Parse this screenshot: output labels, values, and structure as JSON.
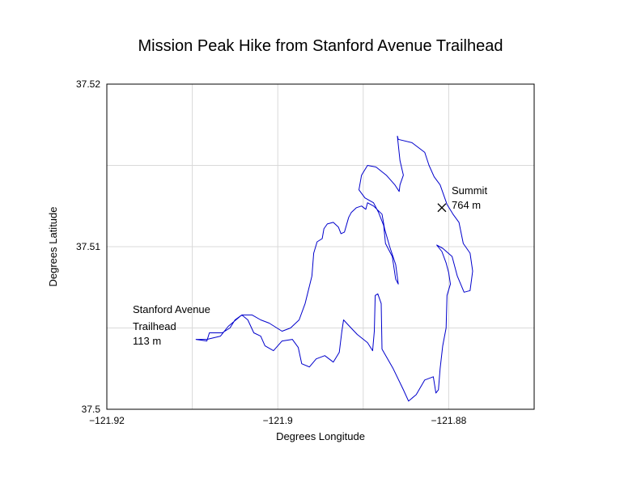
{
  "chart_data": {
    "type": "line",
    "title": "Mission Peak Hike from Stanford Avenue Trailhead",
    "xlabel": "Degrees Longitude",
    "ylabel": "Degrees Latitude",
    "xlim": [
      -121.92,
      -121.87
    ],
    "ylim": [
      37.5,
      37.52
    ],
    "x_ticks": [
      -121.92,
      -121.9,
      -121.88
    ],
    "x_tick_labels": [
      "−121.92",
      "−121.9",
      "−121.88"
    ],
    "y_ticks": [
      37.5,
      37.51,
      37.52
    ],
    "y_tick_labels": [
      "37.5",
      "37.51",
      "37.52"
    ],
    "x_grid": [
      -121.91,
      -121.9,
      -121.89,
      -121.88
    ],
    "y_grid": [
      37.505,
      37.51,
      37.515
    ],
    "grid": true,
    "line_color": "#0000cc",
    "series": [
      {
        "points": [
          [
            -121.9096,
            37.5043
          ],
          [
            -121.9083,
            37.5042
          ],
          [
            -121.908,
            37.5047
          ],
          [
            -121.9065,
            37.5047
          ],
          [
            -121.9056,
            37.505
          ],
          [
            -121.905,
            37.5055
          ],
          [
            -121.9042,
            37.5058
          ],
          [
            -121.9035,
            37.5055
          ],
          [
            -121.9028,
            37.5047
          ],
          [
            -121.902,
            37.5045
          ],
          [
            -121.9015,
            37.5039
          ],
          [
            -121.9005,
            37.5036
          ],
          [
            -121.8995,
            37.5042
          ],
          [
            -121.8983,
            37.5043
          ],
          [
            -121.8976,
            37.5038
          ],
          [
            -121.8972,
            37.5028
          ],
          [
            -121.8963,
            37.5026
          ],
          [
            -121.8955,
            37.5031
          ],
          [
            -121.8945,
            37.5033
          ],
          [
            -121.8935,
            37.5029
          ],
          [
            -121.8928,
            37.5035
          ],
          [
            -121.8925,
            37.5048
          ],
          [
            -121.8923,
            37.5055
          ],
          [
            -121.8916,
            37.5051
          ],
          [
            -121.8907,
            37.5046
          ],
          [
            -121.8895,
            37.5041
          ],
          [
            -121.8889,
            37.5036
          ],
          [
            -121.8887,
            37.5048
          ],
          [
            -121.8886,
            37.507
          ],
          [
            -121.8883,
            37.5071
          ],
          [
            -121.8879,
            37.5065
          ],
          [
            -121.8878,
            37.5037
          ],
          [
            -121.8865,
            37.5025
          ],
          [
            -121.8853,
            37.5012
          ],
          [
            -121.8847,
            37.5005
          ],
          [
            -121.8838,
            37.5009
          ],
          [
            -121.8828,
            37.5018
          ],
          [
            -121.8818,
            37.502
          ],
          [
            -121.8815,
            37.501
          ],
          [
            -121.8812,
            37.5012
          ],
          [
            -121.881,
            37.5025
          ],
          [
            -121.8807,
            37.5039
          ],
          [
            -121.8803,
            37.505
          ],
          [
            -121.8802,
            37.507
          ],
          [
            -121.8798,
            37.5077
          ],
          [
            -121.88,
            37.5084
          ],
          [
            -121.8803,
            37.509
          ],
          [
            -121.8808,
            37.5097
          ],
          [
            -121.8814,
            37.5101
          ],
          [
            -121.8807,
            37.5099
          ],
          [
            -121.8796,
            37.5094
          ],
          [
            -121.879,
            37.5082
          ],
          [
            -121.8782,
            37.5072
          ],
          [
            -121.8775,
            37.5073
          ],
          [
            -121.8772,
            37.5085
          ],
          [
            -121.8775,
            37.5096
          ],
          [
            -121.8783,
            37.5102
          ],
          [
            -121.8788,
            37.5115
          ],
          [
            -121.8795,
            37.512
          ],
          [
            -121.8802,
            37.5126
          ],
          [
            -121.881,
            37.5138
          ],
          [
            -121.8817,
            37.5143
          ],
          [
            -121.8823,
            37.515
          ],
          [
            -121.8828,
            37.5158
          ],
          [
            -121.8843,
            37.5164
          ],
          [
            -121.8859,
            37.5166
          ],
          [
            -121.886,
            37.5168
          ],
          [
            -121.8857,
            37.5153
          ],
          [
            -121.8853,
            37.5144
          ],
          [
            -121.8857,
            37.5138
          ],
          [
            -121.8858,
            37.5134
          ],
          [
            -121.8863,
            37.5138
          ],
          [
            -121.8873,
            37.5144
          ],
          [
            -121.8885,
            37.5149
          ],
          [
            -121.8895,
            37.515
          ],
          [
            -121.8902,
            37.5144
          ],
          [
            -121.8905,
            37.5135
          ],
          [
            -121.8898,
            37.513
          ],
          [
            -121.8888,
            37.5127
          ],
          [
            -121.8882,
            37.5121
          ],
          [
            -121.8876,
            37.5113
          ],
          [
            -121.8874,
            37.5102
          ],
          [
            -121.8866,
            37.5094
          ],
          [
            -121.8862,
            37.508
          ],
          [
            -121.8859,
            37.5077
          ],
          [
            -121.8862,
            37.5089
          ],
          [
            -121.8869,
            37.51
          ],
          [
            -121.8875,
            37.5111
          ],
          [
            -121.8878,
            37.512
          ],
          [
            -121.8888,
            37.5125
          ],
          [
            -121.8895,
            37.5127
          ],
          [
            -121.8897,
            37.5123
          ],
          [
            -121.8902,
            37.5125
          ],
          [
            -121.8908,
            37.5124
          ],
          [
            -121.8914,
            37.5121
          ],
          [
            -121.8917,
            37.5118
          ],
          [
            -121.8922,
            37.5109
          ],
          [
            -121.8926,
            37.5108
          ],
          [
            -121.8929,
            37.5112
          ],
          [
            -121.8935,
            37.5115
          ],
          [
            -121.8942,
            37.5114
          ],
          [
            -121.8946,
            37.5111
          ],
          [
            -121.8948,
            37.5105
          ],
          [
            -121.8954,
            37.5103
          ],
          [
            -121.8958,
            37.5096
          ],
          [
            -121.896,
            37.5082
          ],
          [
            -121.8968,
            37.5065
          ],
          [
            -121.8975,
            37.5055
          ],
          [
            -121.8985,
            37.505
          ],
          [
            -121.8995,
            37.5048
          ],
          [
            -121.901,
            37.5053
          ],
          [
            -121.902,
            37.5055
          ],
          [
            -121.903,
            37.5058
          ],
          [
            -121.9042,
            37.5058
          ],
          [
            -121.9058,
            37.5051
          ],
          [
            -121.9067,
            37.5045
          ],
          [
            -121.9083,
            37.5043
          ],
          [
            -121.9096,
            37.5043
          ]
        ]
      }
    ],
    "annotations": [
      {
        "text": "Summit",
        "at": [
          -121.8828,
          37.5125
        ]
      },
      {
        "text": "764 m",
        "at": [
          -121.8828,
          37.5125
        ]
      },
      {
        "text": "Stanford Avenue",
        "at": [
          -121.9096,
          37.5043
        ]
      },
      {
        "text": "Trailhead",
        "at": [
          -121.9096,
          37.5043
        ]
      },
      {
        "text": "113 m",
        "at": [
          -121.9096,
          37.5043
        ]
      }
    ],
    "markers": [
      {
        "name": "summit",
        "symbol": "x",
        "at": [
          -121.8808,
          37.5124
        ]
      }
    ]
  }
}
